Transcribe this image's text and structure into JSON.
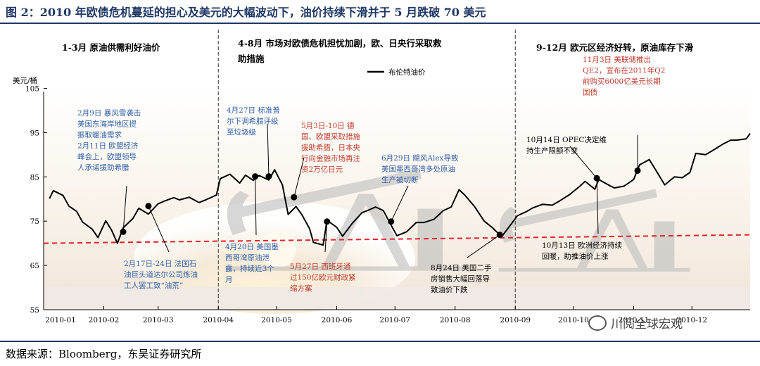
{
  "figure": {
    "title": "图 2：2010 年欧债危机蔓延的担心及美元的大幅波动下，油价持续下滑并于 5 月跌破 70 美元",
    "source": "数据来源：Bloomberg，东吴证券研究所",
    "watermark": "川阅全球宏观",
    "colors": {
      "title": "#1f3864",
      "blue_ann": "#2e5fa8",
      "red_ann": "#c0392b",
      "line": "#000000",
      "dashed": "#e8212a"
    }
  },
  "phases": [
    {
      "label": "1-3月  原油供需利好油价"
    },
    {
      "label": "4-8月  市场对欧债危机担忧加剧，欧、日央行采取救"
    },
    {
      "label": "助措施"
    },
    {
      "label": "9-12月  欧元区经济好转，原油库存下滑"
    }
  ],
  "annotations": [
    {
      "color": "blue",
      "lines": [
        "2月9日  暴风雪袭击",
        "美国东海岸地区提",
        "振取暖油需求",
        "2月11日  欧盟经济",
        "峰会上，欧盟领导",
        "人承诺援助希腊"
      ]
    },
    {
      "color": "blue",
      "lines": [
        "2月17日-24日  法国石",
        "油巨头道达尔公司炼油",
        "工人罢工致“油荒”"
      ]
    },
    {
      "color": "blue",
      "lines": [
        "4月27日  标准普",
        "尔下调希腊评级",
        "至垃圾级"
      ]
    },
    {
      "color": "blue",
      "lines": [
        "4月20日  美国墨",
        "西哥湾原油泄",
        "露，持续近3个",
        "月"
      ]
    },
    {
      "color": "red",
      "lines": [
        "5月3日-10日  德",
        "国、欧盟采取措施",
        "援助希腊，日本央",
        "行向金融市场再注",
        "资2万亿日元"
      ]
    },
    {
      "color": "red",
      "lines": [
        "5月27日  西班牙通",
        "过150亿欧元财政紧",
        "缩方案"
      ]
    },
    {
      "color": "blue",
      "lines": [
        "6月29日  飓风Alex导致",
        "美国墨西哥湾多处原油",
        "生产被切断"
      ]
    },
    {
      "color": "black",
      "lines": [
        "8月24日  美国二手",
        "房销售大幅回落导",
        "致油价下跌"
      ]
    },
    {
      "color": "red",
      "lines": [
        "11月3日  美联储推出",
        "QE2，宣布在2011年Q2",
        "前购买6000亿美元长期",
        "国债"
      ]
    },
    {
      "color": "black",
      "lines": [
        "10月14日  OPEC决定维",
        "持生产限额不变"
      ]
    },
    {
      "color": "black",
      "lines": [
        "10月13日  欧洲经济持续",
        "回暖，助推油价上涨"
      ]
    }
  ],
  "chart_data": {
    "type": "line",
    "ylabel": "美元/桶",
    "ylim": [
      55,
      110
    ],
    "yticks": [
      55,
      65,
      75,
      85,
      95,
      105
    ],
    "xticks": [
      "2010-01",
      "2010-02",
      "2010-03",
      "2010-04",
      "2010-05",
      "2010-06",
      "2010-07",
      "2010-08",
      "2010-09",
      "2010-10",
      "2010-11",
      "2010-12"
    ],
    "xlim": [
      "2010-01-01",
      "2010-12-31"
    ],
    "legend": {
      "label": "布伦特油价",
      "placement": "top-center"
    },
    "reference_line": {
      "value": 70,
      "style": "dashed",
      "color": "#e8212a"
    },
    "grid": false,
    "series": [
      {
        "name": "布伦特油价",
        "color": "#000000",
        "points": [
          [
            "2010-01-04",
            80.1
          ],
          [
            "2010-01-06",
            81.9
          ],
          [
            "2010-01-11",
            80.8
          ],
          [
            "2010-01-14",
            78.4
          ],
          [
            "2010-01-18",
            77.2
          ],
          [
            "2010-01-21",
            74.8
          ],
          [
            "2010-01-26",
            73.2
          ],
          [
            "2010-01-29",
            71.3
          ],
          [
            "2010-02-02",
            75.1
          ],
          [
            "2010-02-05",
            73.0
          ],
          [
            "2010-02-08",
            70.0
          ],
          [
            "2010-02-11",
            73.5
          ],
          [
            "2010-02-16",
            75.6
          ],
          [
            "2010-02-19",
            77.9
          ],
          [
            "2010-02-24",
            76.6
          ],
          [
            "2010-03-01",
            78.9
          ],
          [
            "2010-03-04",
            79.5
          ],
          [
            "2010-03-09",
            80.3
          ],
          [
            "2010-03-12",
            79.8
          ],
          [
            "2010-03-17",
            80.4
          ],
          [
            "2010-03-22",
            79.2
          ],
          [
            "2010-03-26",
            79.9
          ],
          [
            "2010-03-31",
            80.9
          ],
          [
            "2010-04-02",
            84.6
          ],
          [
            "2010-04-07",
            85.6
          ],
          [
            "2010-04-12",
            83.6
          ],
          [
            "2010-04-15",
            85.4
          ],
          [
            "2010-04-19",
            84.2
          ],
          [
            "2010-04-22",
            85.3
          ],
          [
            "2010-04-27",
            84.3
          ],
          [
            "2010-04-30",
            86.6
          ],
          [
            "2010-05-04",
            83.2
          ],
          [
            "2010-05-07",
            76.5
          ],
          [
            "2010-05-11",
            78.3
          ],
          [
            "2010-05-14",
            76.5
          ],
          [
            "2010-05-18",
            73.3
          ],
          [
            "2010-05-20",
            70.2
          ],
          [
            "2010-05-25",
            69.6
          ],
          [
            "2010-05-27",
            75.2
          ],
          [
            "2010-06-01",
            73.6
          ],
          [
            "2010-06-04",
            71.6
          ],
          [
            "2010-06-09",
            74.5
          ],
          [
            "2010-06-14",
            76.9
          ],
          [
            "2010-06-18",
            77.6
          ],
          [
            "2010-06-21",
            78.2
          ],
          [
            "2010-06-25",
            77.4
          ],
          [
            "2010-06-29",
            74.1
          ],
          [
            "2010-07-02",
            71.7
          ],
          [
            "2010-07-07",
            72.6
          ],
          [
            "2010-07-12",
            74.7
          ],
          [
            "2010-07-16",
            74.7
          ],
          [
            "2010-07-21",
            75.4
          ],
          [
            "2010-07-26",
            77.4
          ],
          [
            "2010-07-30",
            78.2
          ],
          [
            "2010-08-03",
            82.1
          ],
          [
            "2010-08-06",
            80.9
          ],
          [
            "2010-08-11",
            78.3
          ],
          [
            "2010-08-16",
            75.0
          ],
          [
            "2010-08-20",
            73.6
          ],
          [
            "2010-08-25",
            71.5
          ],
          [
            "2010-08-30",
            74.4
          ],
          [
            "2010-09-02",
            76.2
          ],
          [
            "2010-09-07",
            77.2
          ],
          [
            "2010-09-10",
            78.0
          ],
          [
            "2010-09-15",
            78.8
          ],
          [
            "2010-09-20",
            78.6
          ],
          [
            "2010-09-24",
            79.6
          ],
          [
            "2010-09-29",
            81.0
          ],
          [
            "2010-10-04",
            82.8
          ],
          [
            "2010-10-07",
            84.0
          ],
          [
            "2010-10-12",
            82.2
          ],
          [
            "2010-10-14",
            84.4
          ],
          [
            "2010-10-18",
            83.4
          ],
          [
            "2010-10-22",
            82.5
          ],
          [
            "2010-10-27",
            82.9
          ],
          [
            "2010-11-01",
            84.4
          ],
          [
            "2010-11-04",
            87.7
          ],
          [
            "2010-11-09",
            88.9
          ],
          [
            "2010-11-12",
            86.8
          ],
          [
            "2010-11-17",
            83.2
          ],
          [
            "2010-11-22",
            85.0
          ],
          [
            "2010-11-26",
            84.8
          ],
          [
            "2010-11-30",
            86.0
          ],
          [
            "2010-12-03",
            90.3
          ],
          [
            "2010-12-08",
            90.0
          ],
          [
            "2010-12-13",
            91.3
          ],
          [
            "2010-12-17",
            92.4
          ],
          [
            "2010-12-21",
            93.3
          ],
          [
            "2010-12-24",
            93.3
          ],
          [
            "2010-12-29",
            93.6
          ],
          [
            "2010-12-31",
            94.8
          ]
        ]
      }
    ],
    "markers": [
      {
        "date": "2010-02-11",
        "value": 72.6
      },
      {
        "date": "2010-02-24",
        "value": 78.4
      },
      {
        "date": "2010-04-20",
        "value": 85.1
      },
      {
        "date": "2010-04-27",
        "value": 85.1
      },
      {
        "date": "2010-05-10",
        "value": 80.4
      },
      {
        "date": "2010-05-27",
        "value": 74.9
      },
      {
        "date": "2010-06-29",
        "value": 74.9
      },
      {
        "date": "2010-08-24",
        "value": 71.9
      },
      {
        "date": "2010-10-13",
        "value": 84.7
      },
      {
        "date": "2010-11-03",
        "value": 86.4
      }
    ]
  }
}
